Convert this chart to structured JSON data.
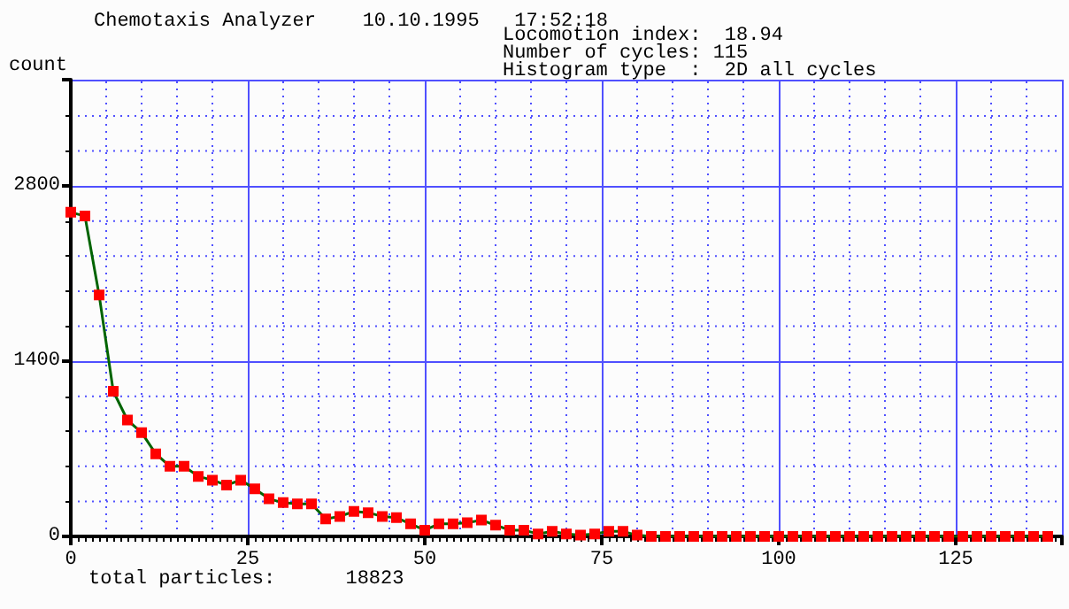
{
  "chart_data": {
    "type": "line",
    "title": "Chemotaxis Analyzer    10.10.1995   17:52:18",
    "ylabel": "count",
    "annotations": [
      "Locomotion index:  18.94",
      "Number of cycles: 115",
      "Histogram type  :  2D all cycles",
      "total particles:      18823"
    ],
    "x": [
      0,
      2,
      4,
      6,
      8,
      10,
      12,
      14,
      16,
      18,
      20,
      22,
      24,
      26,
      28,
      30,
      32,
      34,
      36,
      38,
      40,
      42,
      44,
      46,
      48,
      50,
      52,
      54,
      56,
      58,
      60,
      62,
      64,
      66,
      68,
      70,
      72,
      74,
      76,
      78,
      80,
      82,
      84,
      86,
      88,
      90,
      92,
      94,
      96,
      98,
      100,
      102,
      104,
      106,
      108,
      110,
      112,
      114,
      116,
      118,
      120,
      122,
      124,
      126,
      128,
      130,
      132,
      134,
      136,
      138
    ],
    "series": [
      {
        "color": "#ff0000",
        "values": [
          2590,
          2560,
          1930,
          1160,
          930,
          830,
          660,
          560,
          560,
          480,
          450,
          410,
          450,
          380,
          300,
          270,
          260,
          260,
          140,
          160,
          200,
          190,
          160,
          150,
          100,
          50,
          100,
          100,
          110,
          130,
          90,
          50,
          50,
          20,
          40,
          20,
          10,
          20,
          40,
          40,
          10,
          0,
          0,
          0,
          0,
          0,
          0,
          0,
          0,
          0,
          0,
          0,
          0,
          0,
          0,
          0,
          0,
          0,
          0,
          0,
          0,
          0,
          0,
          0,
          0,
          0,
          0,
          0,
          0,
          0
        ]
      }
    ],
    "xlim": [
      0,
      140
    ],
    "xticks": [
      0,
      {
        "value": 5,
        "label": null
      },
      {
        "value": 10,
        "label": null
      },
      {
        "value": 15,
        "label": null
      },
      {
        "value": 20,
        "label": null
      },
      25,
      {
        "value": 30,
        "label": null
      },
      {
        "value": 35,
        "label": null
      },
      {
        "value": 40,
        "label": null
      },
      {
        "value": 45,
        "label": null
      },
      50,
      {
        "value": 55,
        "label": null
      },
      {
        "value": 60,
        "label": null
      },
      {
        "value": 65,
        "label": null
      },
      {
        "value": 70,
        "label": null
      },
      75,
      {
        "value": 80,
        "label": null
      },
      {
        "value": 85,
        "label": null
      },
      {
        "value": 90,
        "label": null
      },
      {
        "value": 95,
        "label": null
      },
      100,
      {
        "value": 105,
        "label": null
      },
      {
        "value": 110,
        "label": null
      },
      {
        "value": 115,
        "label": null
      },
      {
        "value": 120,
        "label": null
      },
      125,
      {
        "value": 130,
        "label": null
      },
      {
        "value": 135,
        "label": null
      }
    ],
    "ylim": [
      0,
      3650
    ],
    "yticks": [
      0,
      {
        "value": 280,
        "label": null
      },
      {
        "value": 560,
        "label": null
      },
      {
        "value": 840,
        "label": null
      },
      {
        "value": 1120,
        "label": null
      },
      1400,
      {
        "value": 1680,
        "label": null
      },
      {
        "value": 1960,
        "label": null
      },
      {
        "value": 2240,
        "label": null
      },
      {
        "value": 2520,
        "label": null
      },
      2800,
      {
        "value": 3080,
        "label": null
      },
      {
        "value": 3360,
        "label": null
      }
    ],
    "grid": true,
    "marker": "square",
    "line_style": "solid"
  }
}
